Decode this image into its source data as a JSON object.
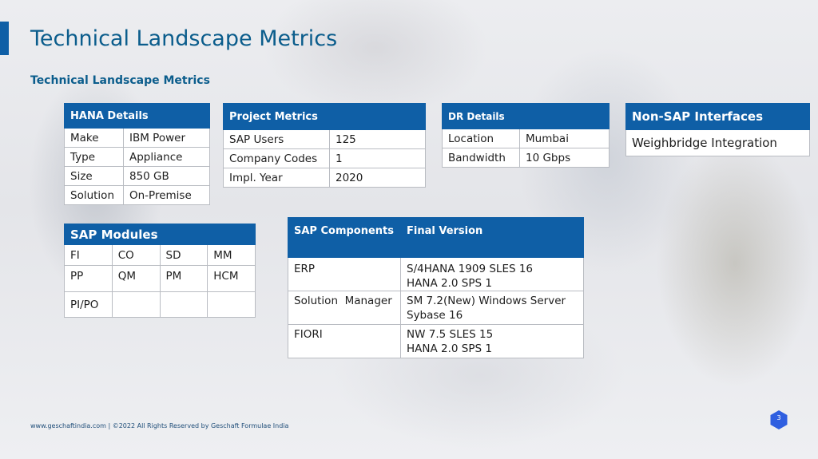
{
  "slide": {
    "title": "Technical Landscape Metrics",
    "subtitle": "Technical Landscape Metrics",
    "accent_color": "#0f5fa6",
    "page_number": "3"
  },
  "hana": {
    "header": "HANA Details",
    "rows": [
      [
        "Make",
        "IBM Power"
      ],
      [
        "Type",
        "Appliance"
      ],
      [
        "Size",
        "850 GB"
      ],
      [
        "Solution",
        "On-Premise"
      ]
    ]
  },
  "project": {
    "header": "Project Metrics",
    "rows": [
      [
        "SAP Users",
        "125"
      ],
      [
        "Company Codes",
        "1"
      ],
      [
        "Impl. Year",
        "2020"
      ]
    ]
  },
  "dr": {
    "header": "DR Details",
    "rows": [
      [
        "Location",
        "Mumbai"
      ],
      [
        "Bandwidth",
        "10 Gbps"
      ]
    ]
  },
  "non_sap": {
    "header": "Non-SAP Interfaces",
    "items": [
      "Weighbridge Integration"
    ]
  },
  "modules": {
    "header": "SAP Modules",
    "rows": [
      [
        "FI",
        "CO",
        "SD",
        "MM"
      ],
      [
        "PP",
        "QM",
        "PM",
        "HCM"
      ],
      [
        "PI/PO",
        "",
        "",
        ""
      ]
    ]
  },
  "components": {
    "headers": [
      "SAP Components",
      "Final Version"
    ],
    "rows": [
      {
        "component": "ERP",
        "version_line1": "S/4HANA 1909 SLES 16",
        "version_line2": "HANA 2.0 SPS 1"
      },
      {
        "component": "Solution  Manager",
        "version_line1": "SM 7.2(New) Windows Server",
        "version_line2": "Sybase 16"
      },
      {
        "component": "FIORI",
        "version_line1": "NW 7.5 SLES 15",
        "version_line2": "HANA 2.0 SPS 1"
      }
    ]
  },
  "footer": {
    "text": "www.geschaftindia.com | ©2022 All Rights Reserved by Geschaft Formulae India"
  }
}
